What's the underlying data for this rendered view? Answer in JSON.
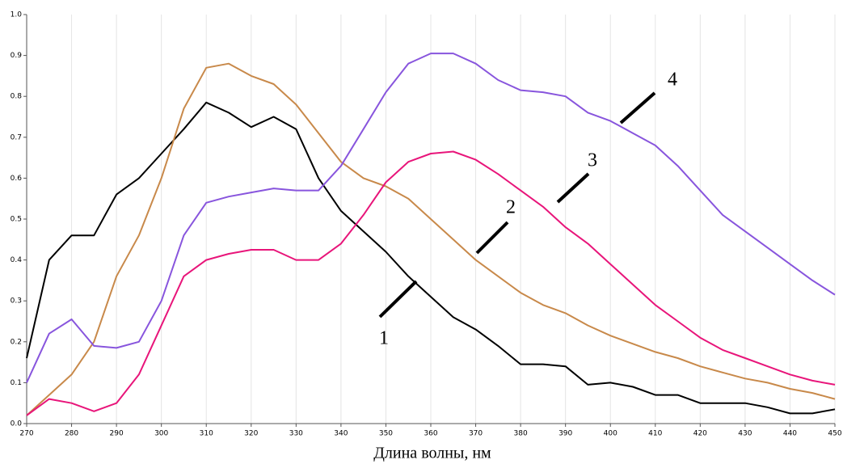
{
  "chart_data": {
    "type": "line",
    "x_label": "Длина волны, нм",
    "x": [
      270,
      275,
      280,
      285,
      290,
      295,
      300,
      305,
      310,
      315,
      320,
      325,
      330,
      335,
      340,
      345,
      350,
      355,
      360,
      365,
      370,
      375,
      380,
      385,
      390,
      395,
      400,
      405,
      410,
      415,
      420,
      425,
      430,
      435,
      440,
      445,
      450
    ],
    "series": [
      {
        "name": "1",
        "color": "#000000",
        "values": [
          0.16,
          0.4,
          0.46,
          0.46,
          0.56,
          0.6,
          0.66,
          0.72,
          0.785,
          0.76,
          0.725,
          0.75,
          0.72,
          0.6,
          0.52,
          0.47,
          0.42,
          0.36,
          0.31,
          0.26,
          0.23,
          0.19,
          0.145,
          0.145,
          0.14,
          0.095,
          0.1,
          0.09,
          0.07,
          0.07,
          0.05,
          0.05,
          0.05,
          0.04,
          0.025,
          0.025,
          0.035
        ]
      },
      {
        "name": "2",
        "color": "#c8894a",
        "values": [
          0.02,
          0.07,
          0.12,
          0.2,
          0.36,
          0.46,
          0.6,
          0.77,
          0.87,
          0.88,
          0.85,
          0.83,
          0.78,
          0.71,
          0.64,
          0.6,
          0.58,
          0.55,
          0.5,
          0.45,
          0.4,
          0.36,
          0.32,
          0.29,
          0.27,
          0.24,
          0.215,
          0.195,
          0.175,
          0.16,
          0.14,
          0.125,
          0.11,
          0.1,
          0.085,
          0.075,
          0.06
        ]
      },
      {
        "name": "3",
        "color": "#e8157a",
        "values": [
          0.02,
          0.06,
          0.05,
          0.03,
          0.05,
          0.12,
          0.24,
          0.36,
          0.4,
          0.415,
          0.425,
          0.425,
          0.4,
          0.4,
          0.44,
          0.51,
          0.59,
          0.64,
          0.66,
          0.665,
          0.645,
          0.61,
          0.57,
          0.53,
          0.48,
          0.44,
          0.39,
          0.34,
          0.29,
          0.25,
          0.21,
          0.18,
          0.16,
          0.14,
          0.12,
          0.105,
          0.095
        ]
      },
      {
        "name": "4",
        "color": "#8855dd",
        "values": [
          0.1,
          0.22,
          0.255,
          0.19,
          0.185,
          0.2,
          0.3,
          0.46,
          0.54,
          0.555,
          0.565,
          0.575,
          0.57,
          0.57,
          0.63,
          0.72,
          0.81,
          0.88,
          0.905,
          0.905,
          0.88,
          0.84,
          0.815,
          0.81,
          0.8,
          0.76,
          0.74,
          0.71,
          0.68,
          0.63,
          0.57,
          0.51,
          0.47,
          0.43,
          0.39,
          0.35,
          0.315
        ]
      }
    ],
    "xlim": [
      270,
      450
    ],
    "xticks": [
      270,
      280,
      290,
      300,
      310,
      320,
      330,
      340,
      350,
      360,
      370,
      380,
      390,
      400,
      410,
      420,
      430,
      440,
      450
    ],
    "ylim": [
      0,
      1
    ],
    "yticks": [
      {
        "value": 0,
        "label": "0.0"
      },
      0.1,
      0.2,
      0.3,
      0.4,
      0.5,
      0.6,
      0.7,
      0.8,
      0.9,
      {
        "value": 1,
        "label": "1.0"
      }
    ],
    "grid": true
  }
}
